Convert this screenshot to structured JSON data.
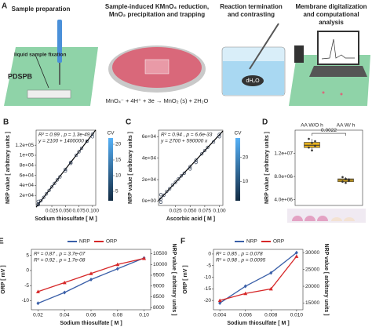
{
  "panel_a": {
    "label": "A",
    "steps": [
      [
        "Sample preparation"
      ],
      [
        "Sample-induced KMnO₄ reduction,",
        "MnO₂ precipitation and trapping"
      ],
      [
        "Reaction termination",
        "and contrasting"
      ],
      [
        "Membrane digitalization",
        "and computational",
        "analysis"
      ]
    ],
    "fixation": "liquid sample fixation",
    "membrane": "PDSPB",
    "water": "dH₂O",
    "equation": "MnO₄⁻ + 4H⁺ + 3e → MnO₂ (s) + 2H₂O"
  },
  "chart_data": [
    {
      "label": "B",
      "type": "scatter",
      "xlabel": "Sodium thiosulfate [ M ]",
      "ylabel": "NRP value [ arbitrary units ]",
      "annotations": [
        {
          "text": "R² = 0.99 , p = 1.3e-49",
          "color": "#222"
        },
        {
          "text": "y = 2100 + 1400000 x",
          "color": "#222"
        }
      ],
      "x": [
        0,
        0,
        0,
        0.005,
        0.01,
        0.015,
        0.02,
        0.025,
        0.03,
        0.035,
        0.04,
        0.05,
        0.05,
        0.06,
        0.06,
        0.07,
        0.075,
        0.08,
        0.09,
        0.1,
        0.1
      ],
      "values": [
        3000,
        1500,
        8000,
        9500,
        16000,
        23000,
        30000,
        37000,
        44000,
        51000,
        57000,
        72000,
        69000,
        86000,
        84000,
        100000,
        107000,
        114000,
        128000,
        142000,
        137000
      ],
      "color": "#1b2a44",
      "fit": {
        "intercept": 2100,
        "slope": 1400000
      },
      "xlim": [
        -0.004,
        0.106
      ],
      "ylim": [
        0,
        150000
      ],
      "xticks": [
        {
          "value": 0.025,
          "label": "0.025"
        },
        {
          "value": 0.05,
          "label": "0.050"
        },
        {
          "value": 0.075,
          "label": "0.075"
        },
        {
          "value": 0.1,
          "label": "0.100"
        }
      ],
      "yticks": [
        {
          "value": 20000,
          "label": "2e+04"
        },
        {
          "value": 40000,
          "label": "4e+04"
        },
        {
          "value": 60000,
          "label": "6e+04"
        },
        {
          "value": 80000,
          "label": "8e+04"
        },
        {
          "value": 100000,
          "label": "1e+05"
        },
        {
          "value": 120000,
          "label": "1.2e+05"
        }
      ],
      "colorbar": {
        "label": "CV",
        "lim": [
          2,
          22
        ],
        "ticks": [
          5,
          10,
          15,
          20
        ]
      }
    },
    {
      "label": "C",
      "type": "scatter",
      "xlabel": "Ascorbic acid [ M ]",
      "ylabel": "NRP value [ arbitrary units ]",
      "annotations": [
        {
          "text": "R² = 0.94 , p = 6.6e-33",
          "color": "#222"
        },
        {
          "text": "y = 2700 + 590000 x",
          "color": "#222"
        }
      ],
      "x": [
        0,
        0,
        0,
        0.005,
        0.01,
        0.015,
        0.02,
        0.025,
        0.03,
        0.035,
        0.04,
        0.05,
        0.05,
        0.06,
        0.06,
        0.07,
        0.075,
        0.08,
        0.09,
        0.1,
        0.1
      ],
      "values": [
        2000,
        6000,
        -1000,
        5500,
        9000,
        11500,
        15000,
        17500,
        20500,
        23500,
        26000,
        32000,
        30000,
        38000,
        36000,
        44000,
        47000,
        50000,
        55000,
        62000,
        60000
      ],
      "color": "#1b2a44",
      "fit": {
        "intercept": 2700,
        "slope": 590000
      },
      "xlim": [
        -0.004,
        0.106
      ],
      "ylim": [
        -4000,
        66000
      ],
      "xticks": [
        {
          "value": 0.025,
          "label": "0.025"
        },
        {
          "value": 0.05,
          "label": "0.050"
        },
        {
          "value": 0.075,
          "label": "0.075"
        },
        {
          "value": 0.1,
          "label": "0.100"
        }
      ],
      "yticks": [
        {
          "value": 0,
          "label": "0e+00"
        },
        {
          "value": 20000,
          "label": "2e+04"
        },
        {
          "value": 40000,
          "label": "4e+04"
        },
        {
          "value": 60000,
          "label": "6e+04"
        }
      ],
      "colorbar": {
        "label": "CV",
        "lim": [
          2,
          28
        ],
        "ticks": [
          10,
          20
        ]
      }
    },
    {
      "label": "D",
      "type": "box",
      "ylabel": "NRP value [ arbitrary units ]",
      "categories": [
        "AA W/O h",
        "AA W/ h"
      ],
      "color": "#e8b21c",
      "significance": "0.0022",
      "boxes": [
        {
          "min": 12500000,
          "q1": 13000000,
          "median": 13400000,
          "q3": 13900000,
          "max": 14500000
        },
        {
          "min": 6900000,
          "q1": 7100000,
          "median": 7400000,
          "q3": 7600000,
          "max": 7900000
        }
      ],
      "points": [
        [
          14500000,
          13800000,
          13300000,
          13000000,
          12500000,
          14100000
        ],
        [
          7900000,
          7600000,
          7300000,
          7100000,
          6900000,
          7500000
        ]
      ],
      "ylim": [
        3000000,
        16000000
      ],
      "yticks": [
        {
          "value": 4000000,
          "label": "4.0e+06"
        },
        {
          "value": 8000000,
          "label": "8.0e+06"
        },
        {
          "value": 12000000,
          "label": "1.2e+07"
        }
      ]
    },
    {
      "label": "E",
      "type": "line",
      "xlabel": "Sodium thiosulfate [ M ]",
      "ylabel": "ORP [ mV ]",
      "y2label": "NRP value [ arbitrary units ]",
      "annotations": [
        {
          "text": "R² = 0.87 , p = 3.7e-07",
          "color": "#d62728"
        },
        {
          "text": "R² = 0.92 , p = 1.7e-08",
          "color": "#3a5fa8"
        }
      ],
      "x": [
        0.02,
        0.04,
        0.06,
        0.08,
        0.1
      ],
      "series": [
        {
          "name": "NRP",
          "color": "#3a5fa8",
          "axis": "y2",
          "marker": "diamond",
          "values": [
            8200,
            8700,
            9300,
            9800,
            10300
          ]
        },
        {
          "name": "ORP",
          "color": "#d62728",
          "axis": "y",
          "marker": "triangle",
          "values": [
            -7,
            -4,
            -1,
            2,
            4
          ]
        }
      ],
      "xlim": [
        0.015,
        0.105
      ],
      "ylim": [
        -13,
        7
      ],
      "y2lim": [
        7900,
        10700
      ],
      "xticks": [
        0.02,
        0.04,
        0.06,
        0.08,
        {
          "value": 0.1,
          "label": "0.10"
        }
      ],
      "yticks": [
        -10,
        -5,
        0,
        5
      ],
      "y2ticks": [
        8000,
        8500,
        9000,
        9500,
        10000,
        10500
      ]
    },
    {
      "label": "F",
      "type": "line",
      "xlabel": "Sodium thiosulfate [ M ]",
      "ylabel": "ORP [ mV ]",
      "y2label": "NRP value [ arbitrary units ]",
      "annotations": [
        {
          "text": "R² = 0.85 , p = 0.078",
          "color": "#d62728"
        },
        {
          "text": "R² = 0.98 , p = 0.0095",
          "color": "#3a5fa8"
        }
      ],
      "x": [
        0.004,
        0.006,
        0.008,
        0.01
      ],
      "series": [
        {
          "name": "NRP",
          "color": "#3a5fa8",
          "axis": "y2",
          "marker": "diamond",
          "values": [
            15000,
            20000,
            24000,
            30000
          ]
        },
        {
          "name": "ORP",
          "color": "#d62728",
          "axis": "y",
          "marker": "triangle",
          "values": [
            -20,
            -17,
            -15,
            -1
          ]
        }
      ],
      "xlim": [
        0.0035,
        0.0105
      ],
      "ylim": [
        -24,
        2
      ],
      "y2lim": [
        13000,
        31000
      ],
      "xticks": [
        0.004,
        0.006,
        0.008,
        {
          "value": 0.01,
          "label": "0.010"
        }
      ],
      "yticks": [
        -20,
        -15,
        -10,
        -5,
        0
      ],
      "y2ticks": [
        15000,
        20000,
        25000,
        30000
      ]
    }
  ]
}
